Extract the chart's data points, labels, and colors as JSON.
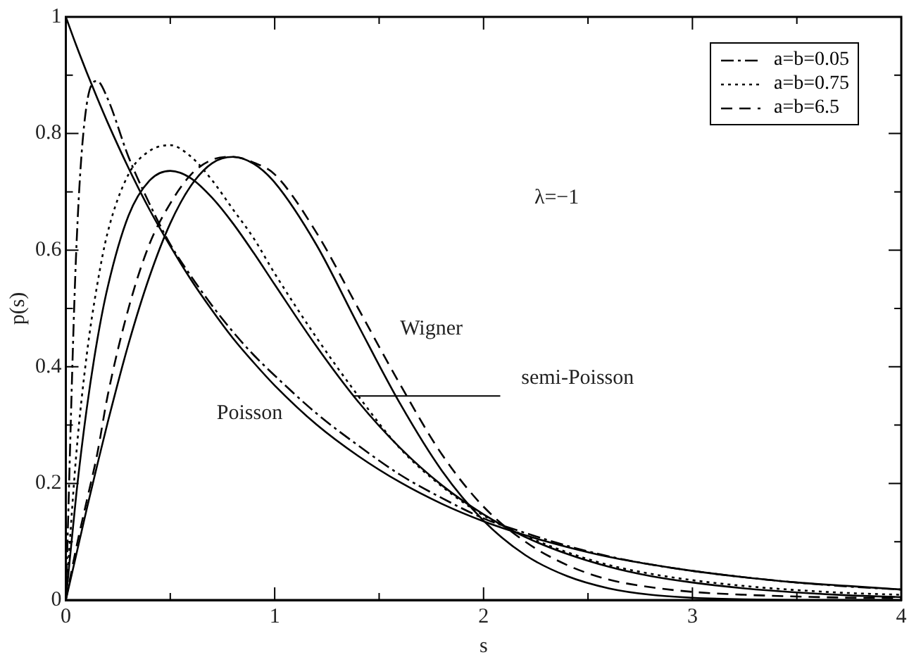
{
  "chart_data": {
    "type": "line",
    "xlabel": "s",
    "ylabel": "p(s)",
    "x": [
      0,
      0.05,
      0.1,
      0.15,
      0.2,
      0.3,
      0.4,
      0.5,
      0.6,
      0.7,
      0.8,
      0.9,
      1,
      1.2,
      1.4,
      1.6,
      1.8,
      2,
      2.2,
      2.4,
      2.6,
      2.8,
      3,
      3.25,
      3.5,
      3.75,
      4
    ],
    "series": [
      {
        "color": "#000000",
        "line_style": "solid",
        "values": [
          1,
          0.951,
          0.905,
          0.861,
          0.819,
          0.741,
          0.67,
          0.607,
          0.549,
          0.497,
          0.449,
          0.407,
          0.368,
          0.301,
          0.247,
          0.202,
          0.165,
          0.135,
          0.111,
          0.091,
          0.074,
          0.061,
          0.05,
          0.039,
          0.03,
          0.024,
          0.018
        ]
      },
      {
        "color": "#000000",
        "line_style": "solid",
        "values": [
          0,
          0.078,
          0.156,
          0.231,
          0.304,
          0.439,
          0.554,
          0.646,
          0.711,
          0.749,
          0.76,
          0.748,
          0.716,
          0.609,
          0.471,
          0.337,
          0.222,
          0.136,
          0.077,
          0.041,
          0.02,
          0.009,
          0.004,
          0.001,
          0,
          0,
          0
        ]
      },
      {
        "color": "#000000",
        "line_style": "solid",
        "values": [
          0,
          0.181,
          0.328,
          0.445,
          0.536,
          0.659,
          0.719,
          0.736,
          0.723,
          0.69,
          0.646,
          0.595,
          0.541,
          0.435,
          0.34,
          0.261,
          0.197,
          0.147,
          0.108,
          0.079,
          0.057,
          0.041,
          0.03,
          0.02,
          0.013,
          0.008,
          0.005
        ]
      },
      {
        "name": "a=b=0.05",
        "color": "#000000",
        "line_style": "dashdot",
        "values": [
          0,
          0.6,
          0.85,
          0.89,
          0.86,
          0.76,
          0.68,
          0.61,
          0.555,
          0.505,
          0.46,
          0.42,
          0.385,
          0.32,
          0.265,
          0.215,
          0.175,
          0.14,
          0.115,
          0.093,
          0.075,
          0.061,
          0.05,
          0.039,
          0.03,
          0.023,
          0.018
        ]
      },
      {
        "name": "a=b=0.75",
        "color": "#000000",
        "line_style": "dotted",
        "values": [
          0,
          0.25,
          0.42,
          0.54,
          0.63,
          0.73,
          0.77,
          0.78,
          0.76,
          0.72,
          0.67,
          0.62,
          0.56,
          0.45,
          0.35,
          0.26,
          0.195,
          0.145,
          0.11,
          0.082,
          0.06,
          0.045,
          0.034,
          0.024,
          0.017,
          0.012,
          0.009
        ]
      },
      {
        "name": "a=b=6.5",
        "color": "#000000",
        "line_style": "dashed",
        "values": [
          0,
          0.09,
          0.17,
          0.25,
          0.35,
          0.5,
          0.61,
          0.68,
          0.73,
          0.755,
          0.76,
          0.75,
          0.73,
          0.63,
          0.5,
          0.37,
          0.25,
          0.16,
          0.1,
          0.06,
          0.035,
          0.022,
          0.014,
          0.009,
          0.006,
          0.004,
          0.003
        ]
      }
    ],
    "xlim": [
      0,
      4
    ],
    "xticks": [
      0,
      {
        "value": 0.5,
        "label": null
      },
      1,
      {
        "value": 1.5,
        "label": null
      },
      2,
      {
        "value": 2.5,
        "label": null
      },
      3,
      {
        "value": 3.5,
        "label": null
      },
      4
    ],
    "ylim": [
      0,
      1
    ],
    "yticks": [
      0,
      {
        "value": 0.1,
        "label": null
      },
      0.2,
      {
        "value": 0.3,
        "label": null
      },
      0.4,
      {
        "value": 0.5,
        "label": null
      },
      0.6,
      {
        "value": 0.7,
        "label": null
      },
      0.8,
      {
        "value": 0.9,
        "label": null
      },
      1
    ],
    "grid": false,
    "legend": "top right",
    "marker": "none",
    "annotations": [
      "λ=−1",
      "Wigner",
      {
        "text": "semi-Poisson",
        "x": 1.38,
        "y": 0.35
      },
      "Poisson"
    ]
  }
}
